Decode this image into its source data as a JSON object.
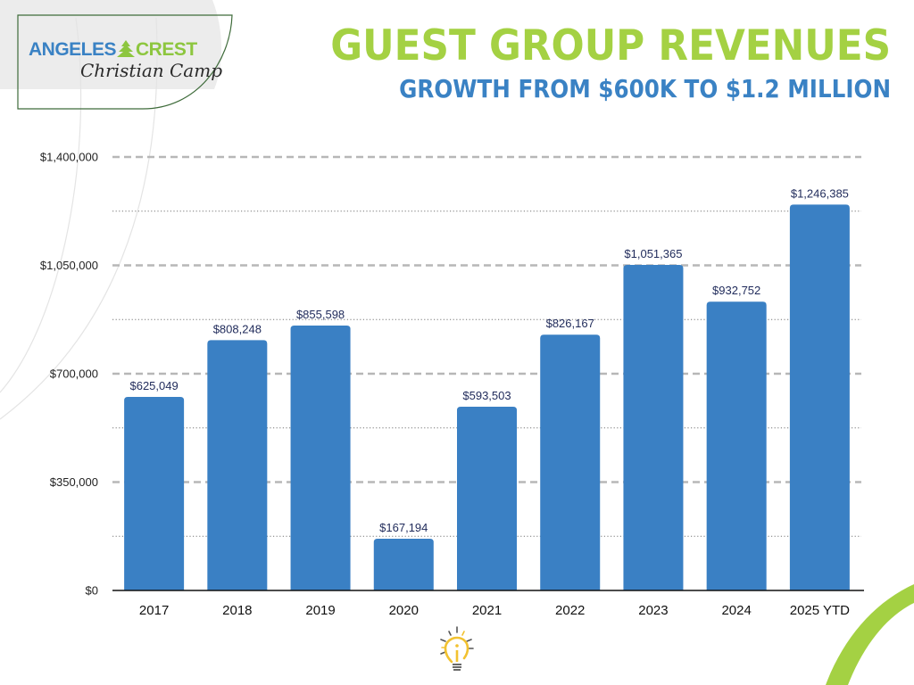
{
  "logo": {
    "line1_a": "ANGELES",
    "line1_b": "CREST",
    "line2": "Christian Camp",
    "tree_icon": "pine-tree-icon"
  },
  "header": {
    "title": "GUEST GROUP REVENUES",
    "subtitle": "GROWTH FROM $600K TO $1.2 MILLION"
  },
  "colors": {
    "bar": "#3a80c4",
    "title": "#a4d143",
    "subtitle": "#3a82c4",
    "data_label": "#1f2a5a",
    "accent_arc": "#a4d143"
  },
  "chart_data": {
    "type": "bar",
    "title": "GUEST GROUP REVENUES",
    "subtitle": "GROWTH FROM $600K TO $1.2 MILLION",
    "xlabel": "",
    "ylabel": "",
    "categories": [
      "2017",
      "2018",
      "2019",
      "2020",
      "2021",
      "2022",
      "2023",
      "2024",
      "2025 YTD"
    ],
    "values": [
      625049,
      808248,
      855598,
      167194,
      593503,
      826167,
      1051365,
      932752,
      1246385
    ],
    "data_labels": [
      "$625,049",
      "$808,248",
      "$855,598",
      "$167,194",
      "$593,503",
      "$826,167",
      "$1,051,365",
      "$932,752",
      "$1,246,385"
    ],
    "ylim": [
      0,
      1400000
    ],
    "yticks": [
      0,
      350000,
      700000,
      1050000,
      1400000
    ],
    "ytick_labels": [
      "$0",
      "$350,000",
      "$700,000",
      "$1,050,000",
      "$1,400,000"
    ],
    "minor_gridlines": [
      175000,
      525000,
      875000,
      1225000
    ],
    "grid": true,
    "legend": "none"
  },
  "footer": {
    "icon": "lightbulb-icon"
  }
}
